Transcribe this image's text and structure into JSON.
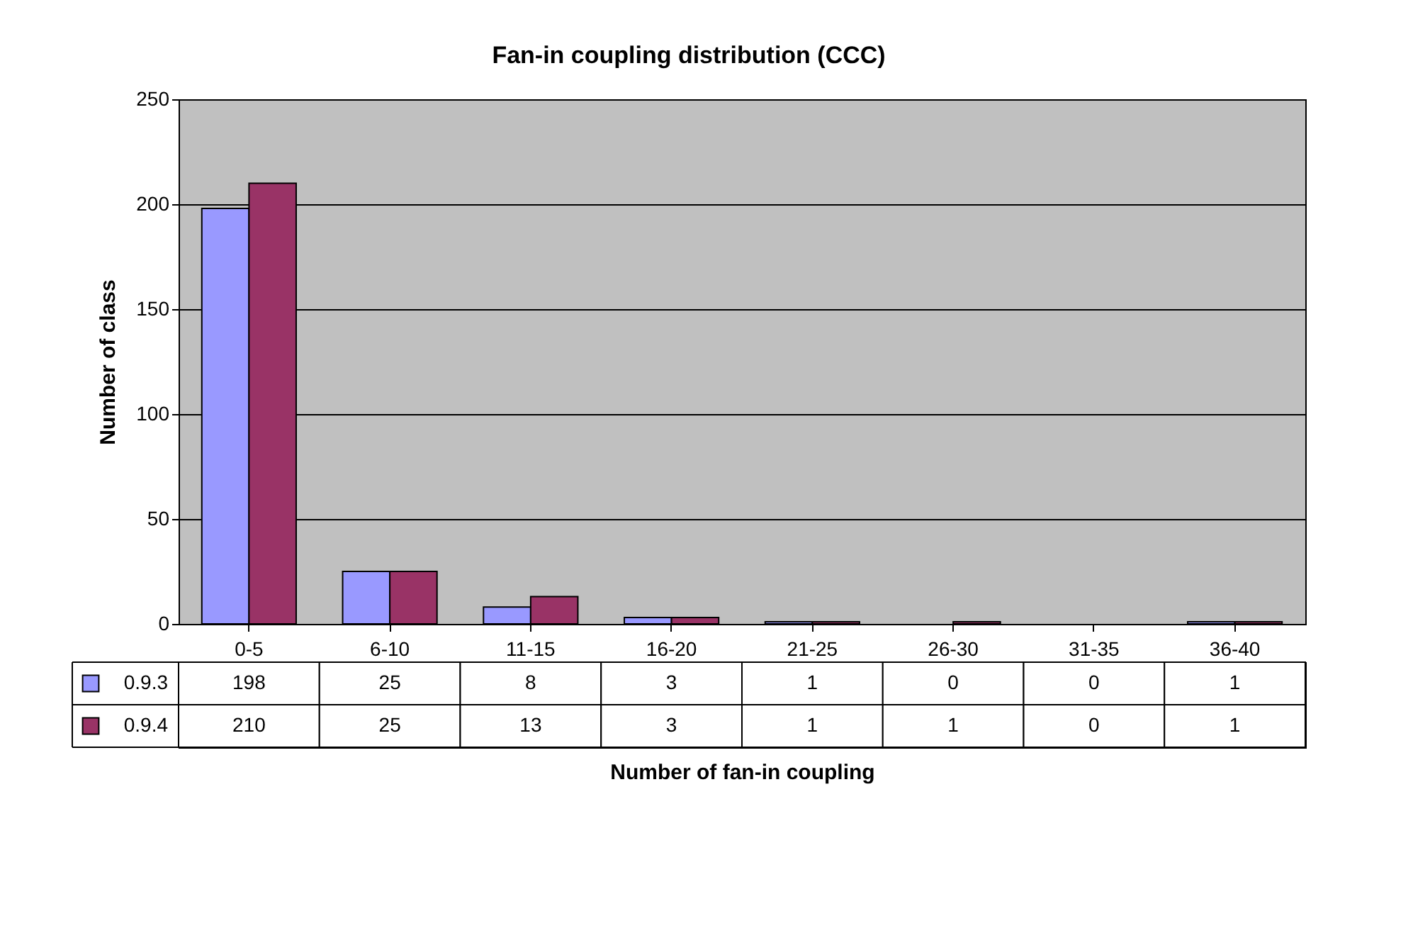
{
  "chart_data": {
    "type": "bar",
    "title": "Fan-in coupling distribution (CCC)",
    "xlabel": "Number of fan-in coupling",
    "ylabel": "Number of class",
    "categories": [
      "0-5",
      "6-10",
      "11-15",
      "16-20",
      "21-25",
      "26-30",
      "31-35",
      "36-40"
    ],
    "series": [
      {
        "name": "0.9.3",
        "color": "#9999ff",
        "values": [
          198,
          25,
          8,
          3,
          1,
          0,
          0,
          1
        ]
      },
      {
        "name": "0.9.4",
        "color": "#993366",
        "values": [
          210,
          25,
          13,
          3,
          1,
          1,
          0,
          1
        ]
      }
    ],
    "ylim": [
      0,
      250
    ],
    "yticks": [
      0,
      50,
      100,
      150,
      200,
      250
    ],
    "grid": "y",
    "legend": "bottom left",
    "data_labels": true
  }
}
